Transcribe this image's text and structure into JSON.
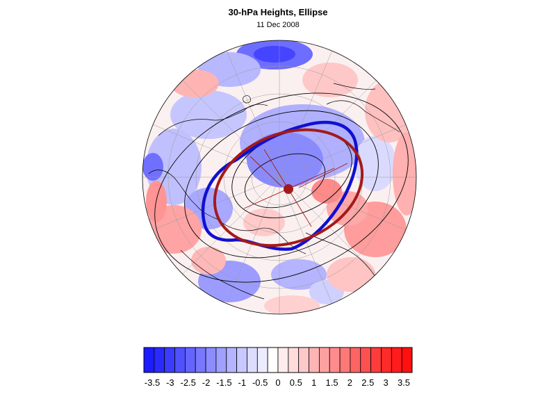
{
  "title": "30-hPa Heights, Ellipse",
  "date": "11 Dec 2008",
  "colorbar": {
    "labels": [
      "-3.5",
      "-3",
      "-2.5",
      "-2",
      "-1.5",
      "-1",
      "-0.5",
      "0",
      "0.5",
      "1",
      "1.5",
      "2",
      "2.5",
      "3",
      "3.5"
    ],
    "colors": [
      "#1c1cff",
      "#2a2aff",
      "#3c3cff",
      "#5050ff",
      "#6464ff",
      "#7878ff",
      "#8c8cff",
      "#a0a0ff",
      "#b4b4ff",
      "#c8c8ff",
      "#dcdcff",
      "#ececff",
      "#ffffff",
      "#ffecec",
      "#ffdcdc",
      "#ffc8c8",
      "#ffb4b4",
      "#ffa0a0",
      "#ff8c8c",
      "#ff7878",
      "#ff6464",
      "#ff5050",
      "#ff3c3c",
      "#ff2a2a",
      "#ff1c1c",
      "#ff0f0f"
    ]
  },
  "overlays": {
    "vortex_edge_color": "#1010d0",
    "ellipse_color": "#a31a1a",
    "center_marker_color": "#a31a1a",
    "coast_color": "#000000"
  }
}
